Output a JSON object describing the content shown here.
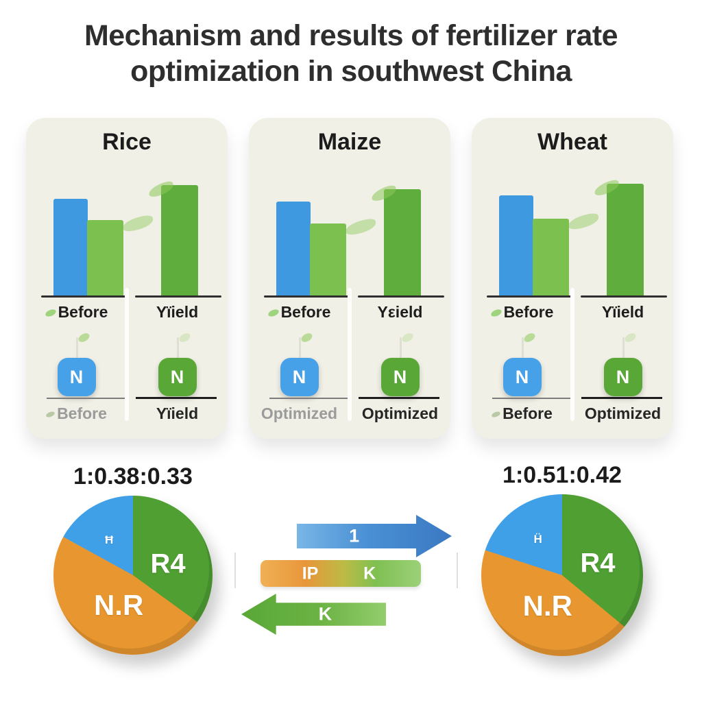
{
  "title": "Mechanism and results of fertilizer rate optimization in southwest China",
  "cards": [
    {
      "name": "Rice",
      "bars": {
        "before_blue": 141,
        "before_green": 110,
        "yield_green": 161
      },
      "top_labels": {
        "left": "Before",
        "right": "Yïield"
      },
      "nutrient_left": "N",
      "nutrient_right": "N",
      "bottom_labels": {
        "left": "Before",
        "right": "Yïield"
      }
    },
    {
      "name": "Maize",
      "bars": {
        "before_blue": 137,
        "before_green": 105,
        "yield_green": 155
      },
      "top_labels": {
        "left": "Before",
        "right": "Yεield"
      },
      "nutrient_left": "N",
      "nutrient_right": "N",
      "bottom_labels": {
        "left": "Optimized",
        "right": "Optimized"
      }
    },
    {
      "name": "Wheat",
      "bars": {
        "before_blue": 146,
        "before_green": 112,
        "yield_green": 163
      },
      "top_labels": {
        "left": "Before",
        "right": "Yïield"
      },
      "nutrient_left": "N",
      "nutrient_right": "N",
      "bottom_labels": {
        "left": "Before",
        "right": "Optimized"
      }
    }
  ],
  "pies": [
    {
      "title": "1:0.38:0.33",
      "slices": [
        {
          "label": "R4",
          "pct": 35,
          "color": "#4f9f33"
        },
        {
          "label": "N.R",
          "pct": 48,
          "color": "#e8962f"
        },
        {
          "label": "Ħ",
          "pct": 17,
          "color": "#3fa0e8"
        }
      ]
    },
    {
      "title": "1:0.51:0.42",
      "slices": [
        {
          "label": "R4",
          "pct": 36,
          "color": "#4f9f33"
        },
        {
          "label": "N.R",
          "pct": 44,
          "color": "#e8962f"
        },
        {
          "label": "Ḧ",
          "pct": 20,
          "color": "#3fa0e8"
        }
      ]
    }
  ],
  "arrows": {
    "top_label": "1",
    "mid_left_label": "IP",
    "mid_right_label": "K",
    "bottom_label": "K"
  },
  "colors": {
    "card_bg": "#f1f0e6",
    "bar_blue": "#3f99e0",
    "bar_green_light": "#7cc04f",
    "bar_green_dark": "#5fae3d",
    "n_box_blue": "#47a1e8",
    "n_box_green": "#58a737",
    "pie_green": "#4f9f33",
    "pie_orange": "#e8962f",
    "pie_blue": "#3fa0e8",
    "arrow_blue": "#3a79c2",
    "arrow_green": "#6cb344",
    "text_dark": "#1d1d1d",
    "text_muted": "#9b9b9b"
  },
  "chart_data": [
    {
      "type": "bar",
      "title": "Rice",
      "categories": [
        "Before N (blue)",
        "Before yield (green)",
        "Optimized yield (green)"
      ],
      "values": [
        0.88,
        0.68,
        1.0
      ]
    },
    {
      "type": "bar",
      "title": "Maize",
      "categories": [
        "Before N (blue)",
        "Before yield (green)",
        "Optimized yield (green)"
      ],
      "values": [
        0.88,
        0.68,
        1.0
      ]
    },
    {
      "type": "bar",
      "title": "Wheat",
      "categories": [
        "Before N (blue)",
        "Before yield (green)",
        "Optimized yield (green)"
      ],
      "values": [
        0.9,
        0.69,
        1.0
      ]
    },
    {
      "type": "pie",
      "title": "1:0.38:0.33",
      "labels": [
        "R4",
        "N.R",
        "Ħ"
      ],
      "values": [
        35,
        48,
        17
      ]
    },
    {
      "type": "pie",
      "title": "1:0.51:0.42",
      "labels": [
        "R4",
        "N.R",
        "Ḧ"
      ],
      "values": [
        36,
        44,
        20
      ]
    }
  ]
}
